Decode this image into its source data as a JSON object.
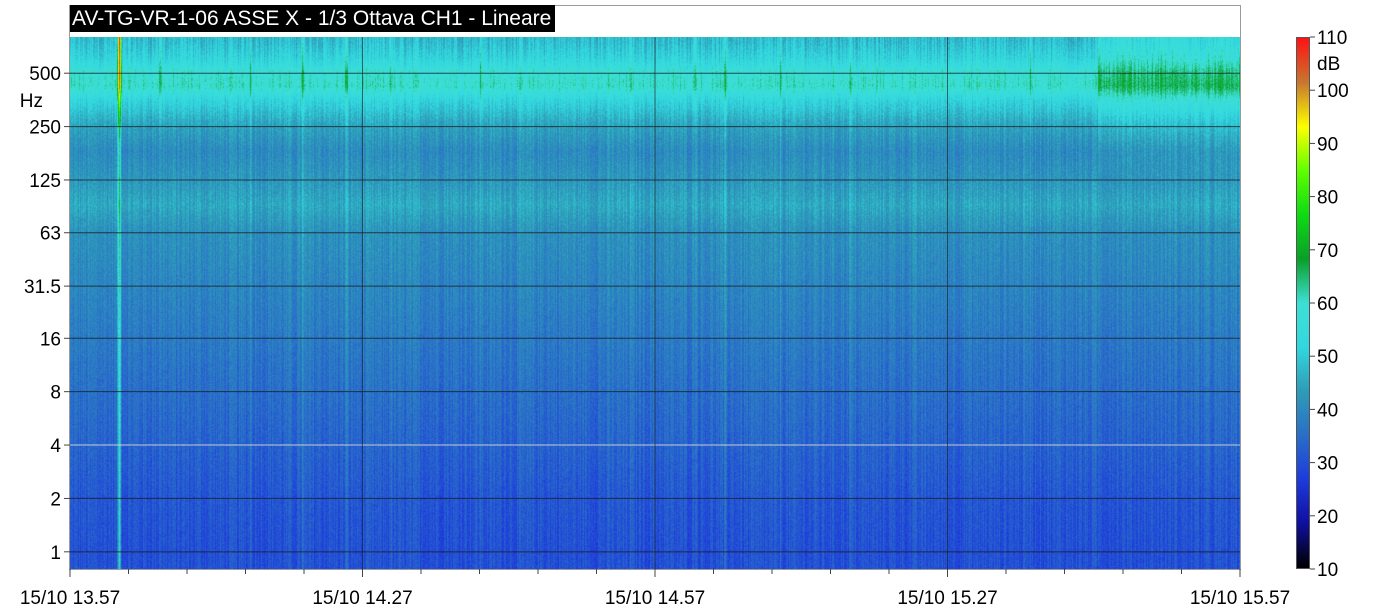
{
  "chart_data": {
    "type": "heatmap",
    "title": "AV-TG-VR-1-06 ASSE X - 1/3 Ottava CH1 - Lineare",
    "y_axis": {
      "scale": "log",
      "unit_label": "Hz",
      "ticks": [
        1,
        2,
        4,
        8,
        16,
        31.5,
        63,
        125,
        250,
        500
      ],
      "tick_labels": [
        "1",
        "2",
        "4",
        "8",
        "16",
        "31.5",
        "63",
        "125",
        "250",
        "500"
      ],
      "range": [
        0.8,
        800
      ]
    },
    "x_axis": {
      "range": [
        "15/10 13.57",
        "15/10 15.57"
      ],
      "labeled_ticks": [
        "15/10 13.57",
        "15/10 14.27",
        "15/10 14.57",
        "15/10 15.27",
        "15/10 15.57"
      ],
      "minor_tick_interval_minutes": 6
    },
    "colorbar": {
      "unit": "dB",
      "range": [
        10,
        110
      ],
      "ticks": [
        10,
        20,
        30,
        40,
        50,
        60,
        70,
        80,
        90,
        100,
        110
      ],
      "colormap": [
        "#000000",
        "#1010a0",
        "#1e3cdc",
        "#2a6fc8",
        "#2e9db8",
        "#32d8e0",
        "#3ee0d4",
        "#0aa028",
        "#0edc14",
        "#60ff00",
        "#ffff00",
        "#c87830",
        "#ff1414"
      ]
    },
    "spectral_profile": [
      {
        "freq_hz": 1,
        "level_db": 30
      },
      {
        "freq_hz": 2,
        "level_db": 31
      },
      {
        "freq_hz": 4,
        "level_db": 33
      },
      {
        "freq_hz": 8,
        "level_db": 35
      },
      {
        "freq_hz": 16,
        "level_db": 37
      },
      {
        "freq_hz": 31.5,
        "level_db": 39
      },
      {
        "freq_hz": 63,
        "level_db": 41
      },
      {
        "freq_hz": 90,
        "level_db": 45
      },
      {
        "freq_hz": 125,
        "level_db": 42
      },
      {
        "freq_hz": 180,
        "level_db": 40
      },
      {
        "freq_hz": 250,
        "level_db": 44
      },
      {
        "freq_hz": 350,
        "level_db": 52
      },
      {
        "freq_hz": 420,
        "level_db": 60
      },
      {
        "freq_hz": 500,
        "level_db": 58
      },
      {
        "freq_hz": 600,
        "level_db": 52
      },
      {
        "freq_hz": 750,
        "level_db": 48
      }
    ],
    "grid": true
  }
}
